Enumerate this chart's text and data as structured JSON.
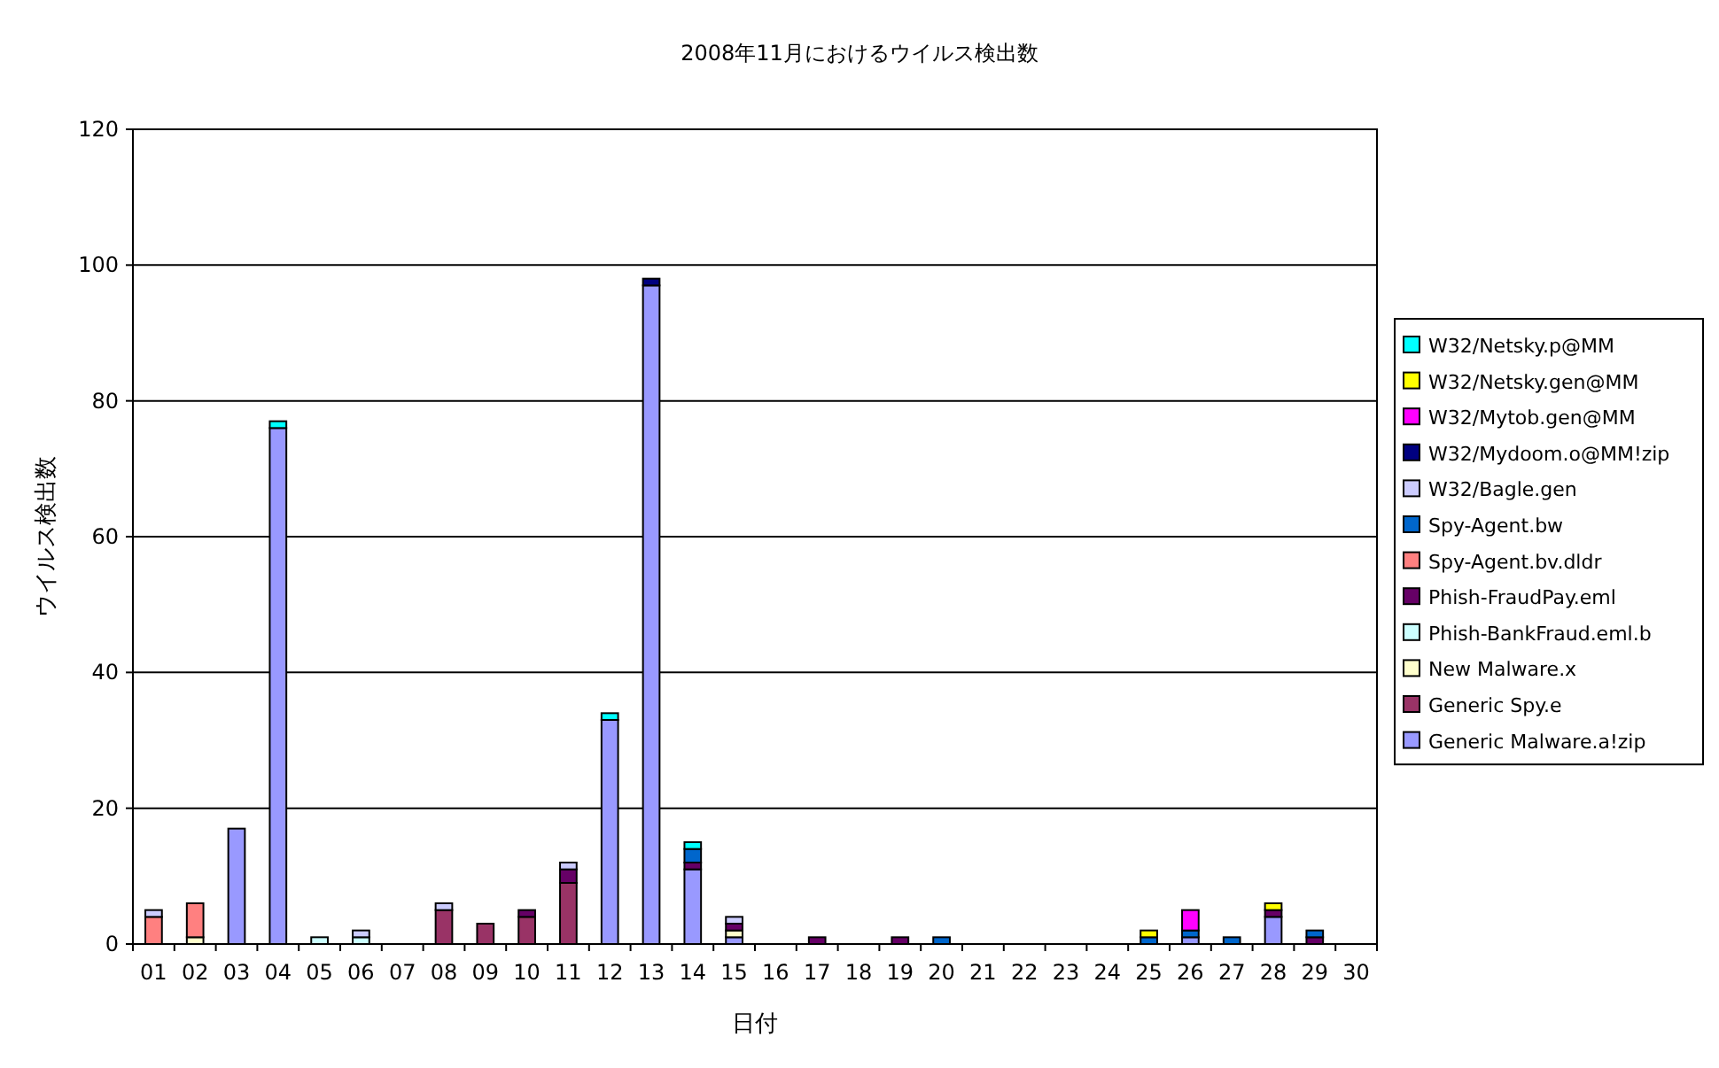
{
  "chart_data": {
    "type": "bar",
    "stacked": true,
    "title": "2008年11月におけるウイルス検出数",
    "xlabel": "日付",
    "ylabel": "ウイルス検出数",
    "categories": [
      "01",
      "02",
      "03",
      "04",
      "05",
      "06",
      "07",
      "08",
      "09",
      "10",
      "11",
      "12",
      "13",
      "14",
      "15",
      "16",
      "17",
      "18",
      "19",
      "20",
      "21",
      "22",
      "23",
      "24",
      "25",
      "26",
      "27",
      "28",
      "29",
      "30"
    ],
    "ylim": [
      0,
      120
    ],
    "yticks": [
      0,
      20,
      40,
      60,
      80,
      100,
      120
    ],
    "grid": "y",
    "legend": "right",
    "series": [
      {
        "name": "Generic Malware.a!zip",
        "color": "#9999ff",
        "values": [
          0,
          0,
          17,
          76,
          0,
          0,
          0,
          0,
          0,
          0,
          0,
          33,
          97,
          11,
          1,
          0,
          0,
          0,
          0,
          0,
          0,
          0,
          0,
          0,
          0,
          1,
          0,
          4,
          0,
          0
        ]
      },
      {
        "name": "Generic Spy.e",
        "color": "#993366",
        "values": [
          0,
          0,
          0,
          0,
          0,
          0,
          0,
          5,
          3,
          4,
          9,
          0,
          0,
          0,
          0,
          0,
          0,
          0,
          0,
          0,
          0,
          0,
          0,
          0,
          0,
          0,
          0,
          0,
          0,
          0
        ]
      },
      {
        "name": "New Malware.x",
        "color": "#ffffcc",
        "values": [
          0,
          1,
          0,
          0,
          0,
          0,
          0,
          0,
          0,
          0,
          0,
          0,
          0,
          0,
          1,
          0,
          0,
          0,
          0,
          0,
          0,
          0,
          0,
          0,
          0,
          0,
          0,
          0,
          0,
          0
        ]
      },
      {
        "name": "Phish-BankFraud.eml.b",
        "color": "#ccffff",
        "values": [
          0,
          0,
          0,
          0,
          1,
          1,
          0,
          0,
          0,
          0,
          0,
          0,
          0,
          0,
          0,
          0,
          0,
          0,
          0,
          0,
          0,
          0,
          0,
          0,
          0,
          0,
          0,
          0,
          0,
          0
        ]
      },
      {
        "name": "Phish-FraudPay.eml",
        "color": "#660066",
        "values": [
          0,
          0,
          0,
          0,
          0,
          0,
          0,
          0,
          0,
          1,
          2,
          0,
          0,
          1,
          1,
          0,
          1,
          0,
          1,
          0,
          0,
          0,
          0,
          0,
          0,
          0,
          0,
          1,
          1,
          0
        ]
      },
      {
        "name": "Spy-Agent.bv.dldr",
        "color": "#ff8080",
        "values": [
          4,
          5,
          0,
          0,
          0,
          0,
          0,
          0,
          0,
          0,
          0,
          0,
          0,
          0,
          0,
          0,
          0,
          0,
          0,
          0,
          0,
          0,
          0,
          0,
          0,
          0,
          0,
          0,
          0,
          0
        ]
      },
      {
        "name": "Spy-Agent.bw",
        "color": "#0066cc",
        "values": [
          0,
          0,
          0,
          0,
          0,
          0,
          0,
          0,
          0,
          0,
          0,
          0,
          0,
          2,
          0,
          0,
          0,
          0,
          0,
          1,
          0,
          0,
          0,
          0,
          1,
          1,
          1,
          0,
          1,
          0
        ]
      },
      {
        "name": "W32/Bagle.gen",
        "color": "#ccccff",
        "values": [
          1,
          0,
          0,
          0,
          0,
          1,
          0,
          1,
          0,
          0,
          1,
          0,
          0,
          0,
          1,
          0,
          0,
          0,
          0,
          0,
          0,
          0,
          0,
          0,
          0,
          0,
          0,
          0,
          0,
          0
        ]
      },
      {
        "name": "W32/Mydoom.o@MM!zip",
        "color": "#000080",
        "values": [
          0,
          0,
          0,
          0,
          0,
          0,
          0,
          0,
          0,
          0,
          0,
          0,
          1,
          0,
          0,
          0,
          0,
          0,
          0,
          0,
          0,
          0,
          0,
          0,
          0,
          0,
          0,
          0,
          0,
          0
        ]
      },
      {
        "name": "W32/Mytob.gen@MM",
        "color": "#ff00ff",
        "values": [
          0,
          0,
          0,
          0,
          0,
          0,
          0,
          0,
          0,
          0,
          0,
          0,
          0,
          0,
          0,
          0,
          0,
          0,
          0,
          0,
          0,
          0,
          0,
          0,
          0,
          3,
          0,
          0,
          0,
          0
        ]
      },
      {
        "name": "W32/Netsky.gen@MM",
        "color": "#ffff00",
        "values": [
          0,
          0,
          0,
          0,
          0,
          0,
          0,
          0,
          0,
          0,
          0,
          0,
          0,
          0,
          0,
          0,
          0,
          0,
          0,
          0,
          0,
          0,
          0,
          0,
          1,
          0,
          0,
          1,
          0,
          0
        ]
      },
      {
        "name": "W32/Netsky.p@MM",
        "color": "#00ffff",
        "values": [
          0,
          0,
          0,
          1,
          0,
          0,
          0,
          0,
          0,
          0,
          0,
          1,
          0,
          1,
          0,
          0,
          0,
          0,
          0,
          0,
          0,
          0,
          0,
          0,
          0,
          0,
          0,
          0,
          0,
          0
        ]
      }
    ]
  }
}
